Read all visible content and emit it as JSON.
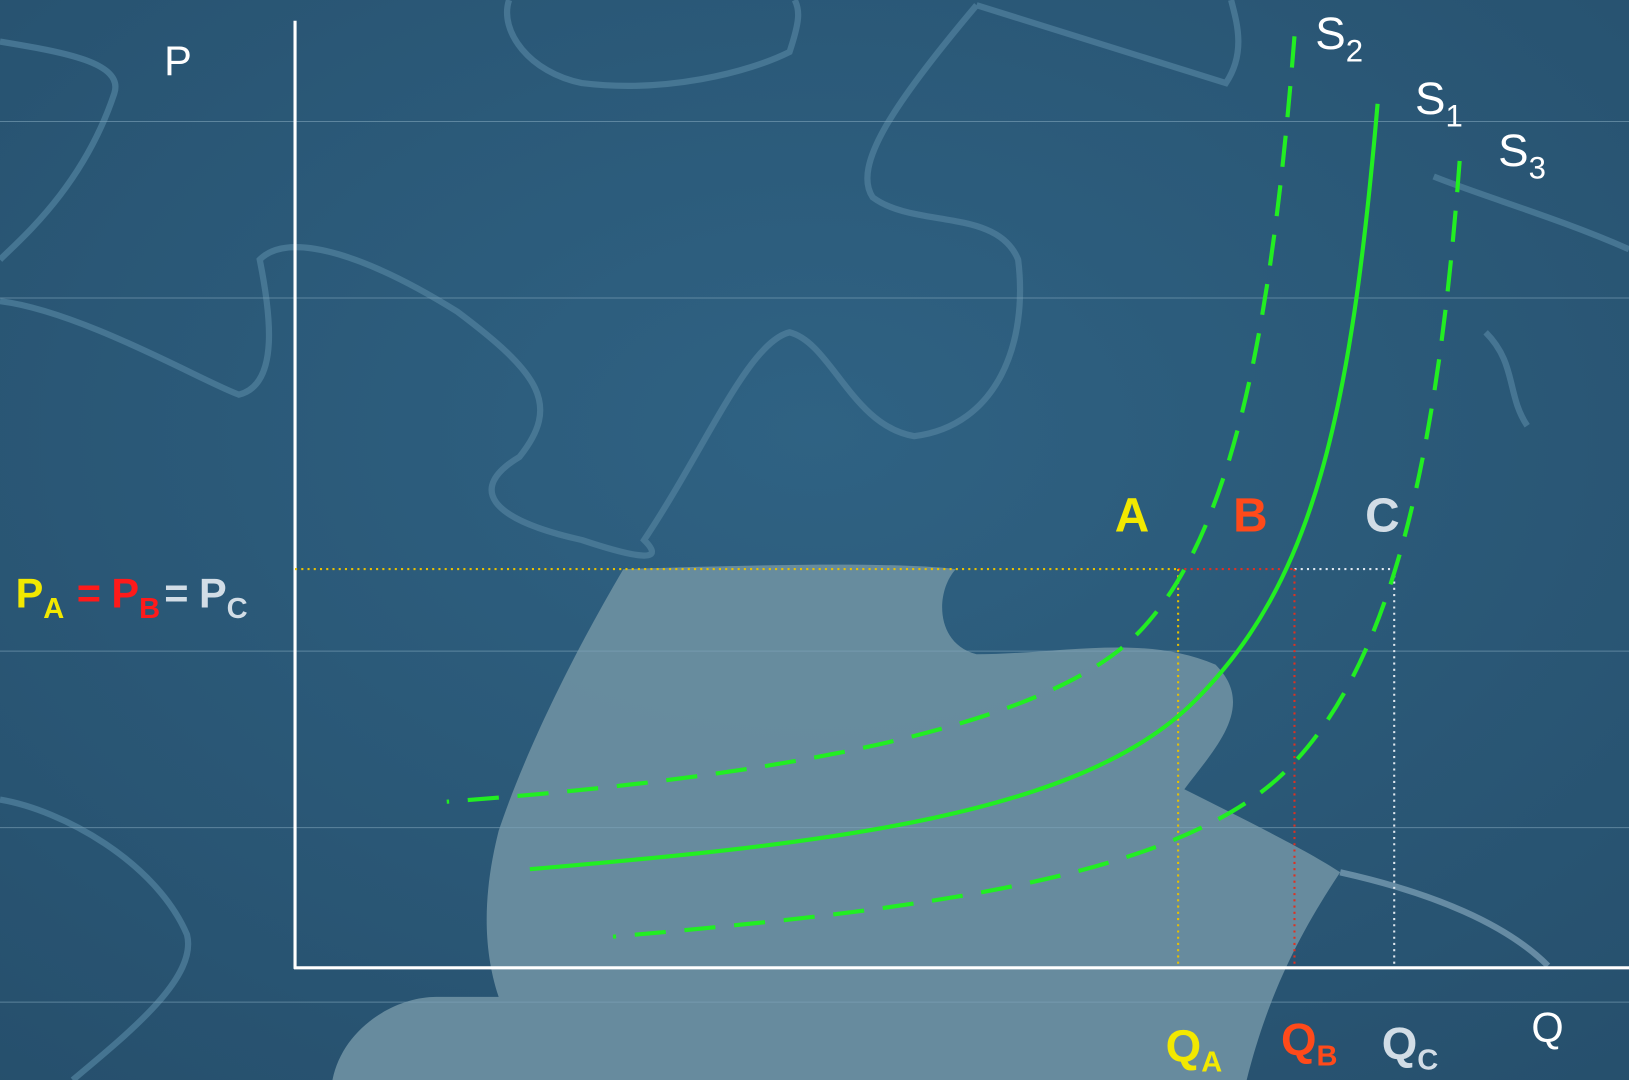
{
  "axes": {
    "y_label": "P",
    "x_label": "Q"
  },
  "curves": [
    {
      "name": "S",
      "sub": "2"
    },
    {
      "name": "S",
      "sub": "1"
    },
    {
      "name": "S",
      "sub": "3"
    }
  ],
  "points": [
    {
      "label": "A"
    },
    {
      "label": "B"
    },
    {
      "label": "C"
    }
  ],
  "price_label": {
    "parts": [
      {
        "text": "P",
        "sub": "A"
      },
      {
        "text": "P",
        "sub": "B"
      },
      {
        "text": "P",
        "sub": "C"
      }
    ],
    "separators": [
      "=",
      "="
    ]
  },
  "quantity_labels": [
    {
      "text": "Q",
      "sub": "A"
    },
    {
      "text": "Q",
      "sub": "B"
    },
    {
      "text": "Q",
      "sub": "C"
    }
  ]
}
